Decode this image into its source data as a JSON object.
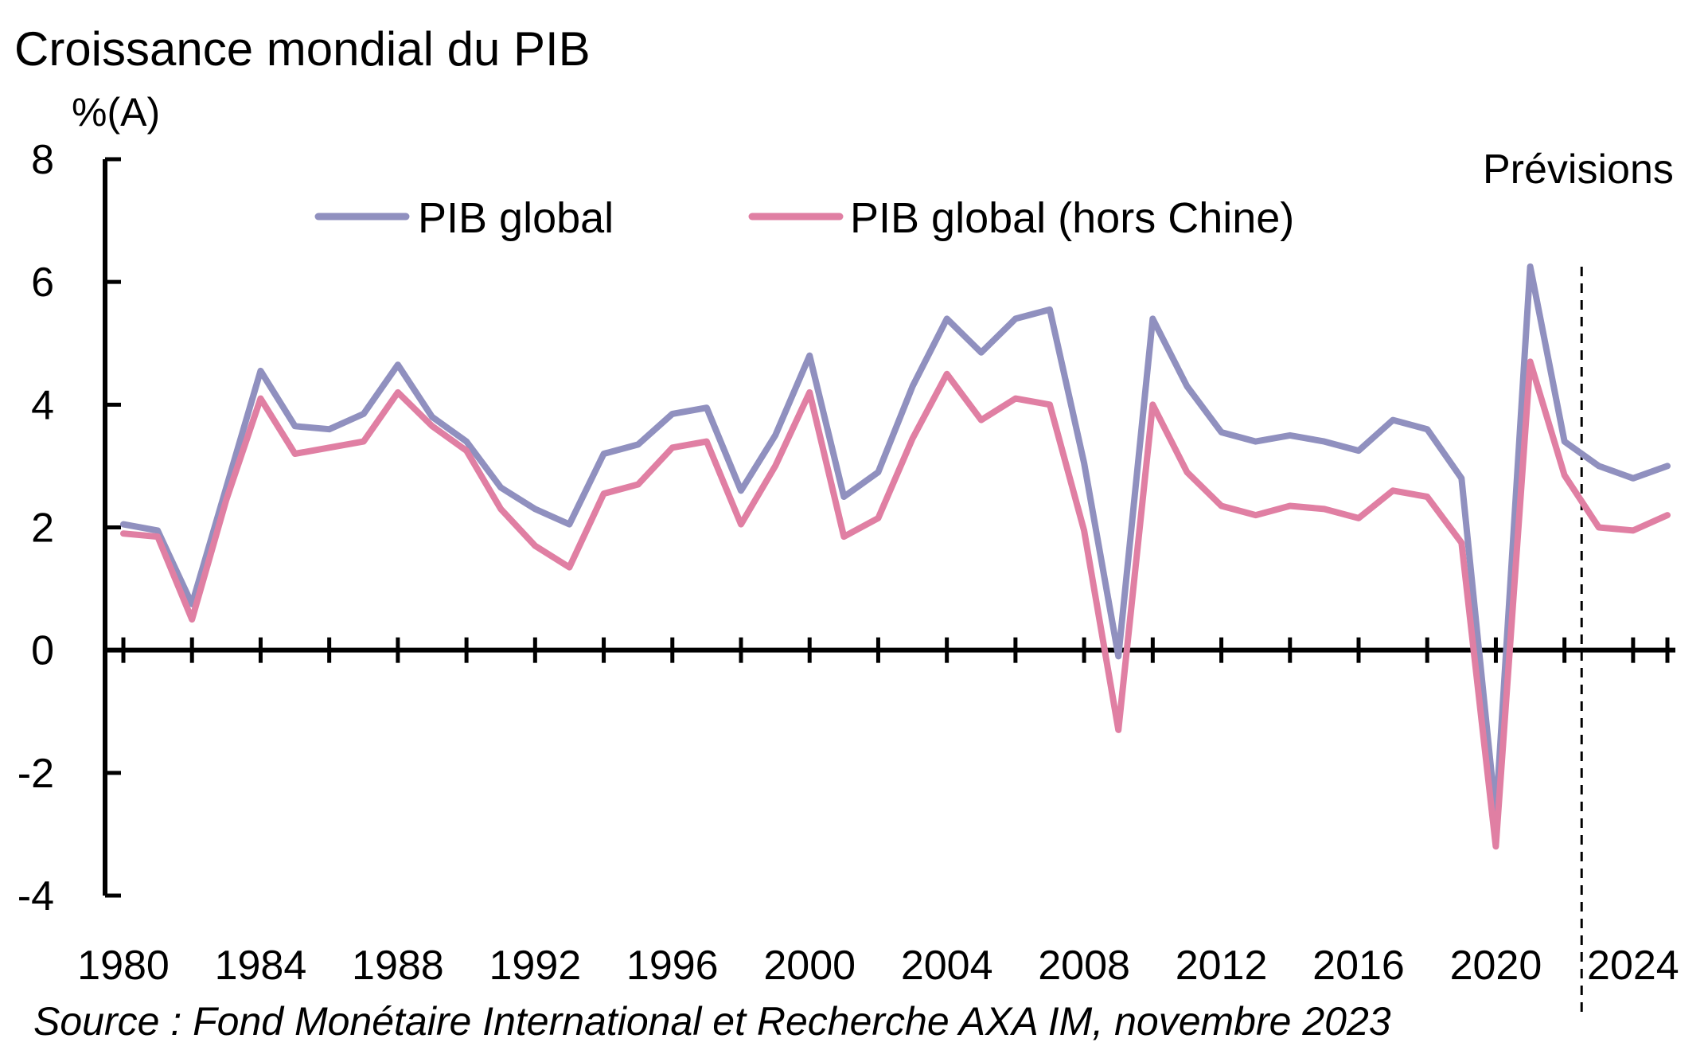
{
  "chart_data": {
    "type": "line",
    "title": "Croissance mondial du PIB",
    "ylabel": "%(A)",
    "xlabel": "",
    "ylim": [
      -4,
      8
    ],
    "yticks": [
      "8",
      "6",
      "4",
      "2",
      "0",
      "-2",
      "-4"
    ],
    "xlim": [
      1980,
      2025
    ],
    "xtick_labels": [
      "1980",
      "1984",
      "1988",
      "1992",
      "1996",
      "2000",
      "2004",
      "2008",
      "2012",
      "2016",
      "2020",
      "2024"
    ],
    "forecast_label": "Prévisions",
    "forecast_start": 2022.5,
    "x": [
      1980,
      1981,
      1982,
      1983,
      1984,
      1985,
      1986,
      1987,
      1988,
      1989,
      1990,
      1991,
      1992,
      1993,
      1994,
      1995,
      1996,
      1997,
      1998,
      1999,
      2000,
      2001,
      2002,
      2003,
      2004,
      2005,
      2006,
      2007,
      2008,
      2009,
      2010,
      2011,
      2012,
      2013,
      2014,
      2015,
      2016,
      2017,
      2018,
      2019,
      2020,
      2021,
      2022,
      2023,
      2024,
      2025
    ],
    "series": [
      {
        "name": "PIB global",
        "color": "#9090bf",
        "values": [
          2.05,
          1.95,
          0.75,
          2.65,
          4.55,
          3.65,
          3.6,
          3.85,
          4.65,
          3.8,
          3.4,
          2.65,
          2.3,
          2.05,
          3.2,
          3.35,
          3.85,
          3.95,
          2.6,
          3.5,
          4.8,
          2.5,
          2.9,
          4.3,
          5.4,
          4.85,
          5.4,
          5.55,
          3.05,
          -0.1,
          5.4,
          4.3,
          3.55,
          3.4,
          3.5,
          3.4,
          3.25,
          3.75,
          3.6,
          2.8,
          -2.7,
          6.25,
          3.4,
          3.0,
          2.8,
          3.0
        ]
      },
      {
        "name": "PIB global (hors Chine)",
        "color": "#e07fa3",
        "values": [
          1.9,
          1.85,
          0.5,
          2.45,
          4.1,
          3.2,
          3.3,
          3.4,
          4.2,
          3.65,
          3.25,
          2.3,
          1.7,
          1.35,
          2.55,
          2.7,
          3.3,
          3.4,
          2.05,
          3.0,
          4.2,
          1.85,
          2.15,
          3.45,
          4.5,
          3.75,
          4.1,
          4.0,
          1.95,
          -1.3,
          4.0,
          2.9,
          2.35,
          2.2,
          2.35,
          2.3,
          2.15,
          2.6,
          2.5,
          1.75,
          -3.2,
          4.7,
          2.85,
          2.0,
          1.95,
          2.2
        ]
      }
    ],
    "legend_position": "top"
  },
  "source_note": "Source : Fond Monétaire International et Recherche AXA IM, novembre 2023"
}
